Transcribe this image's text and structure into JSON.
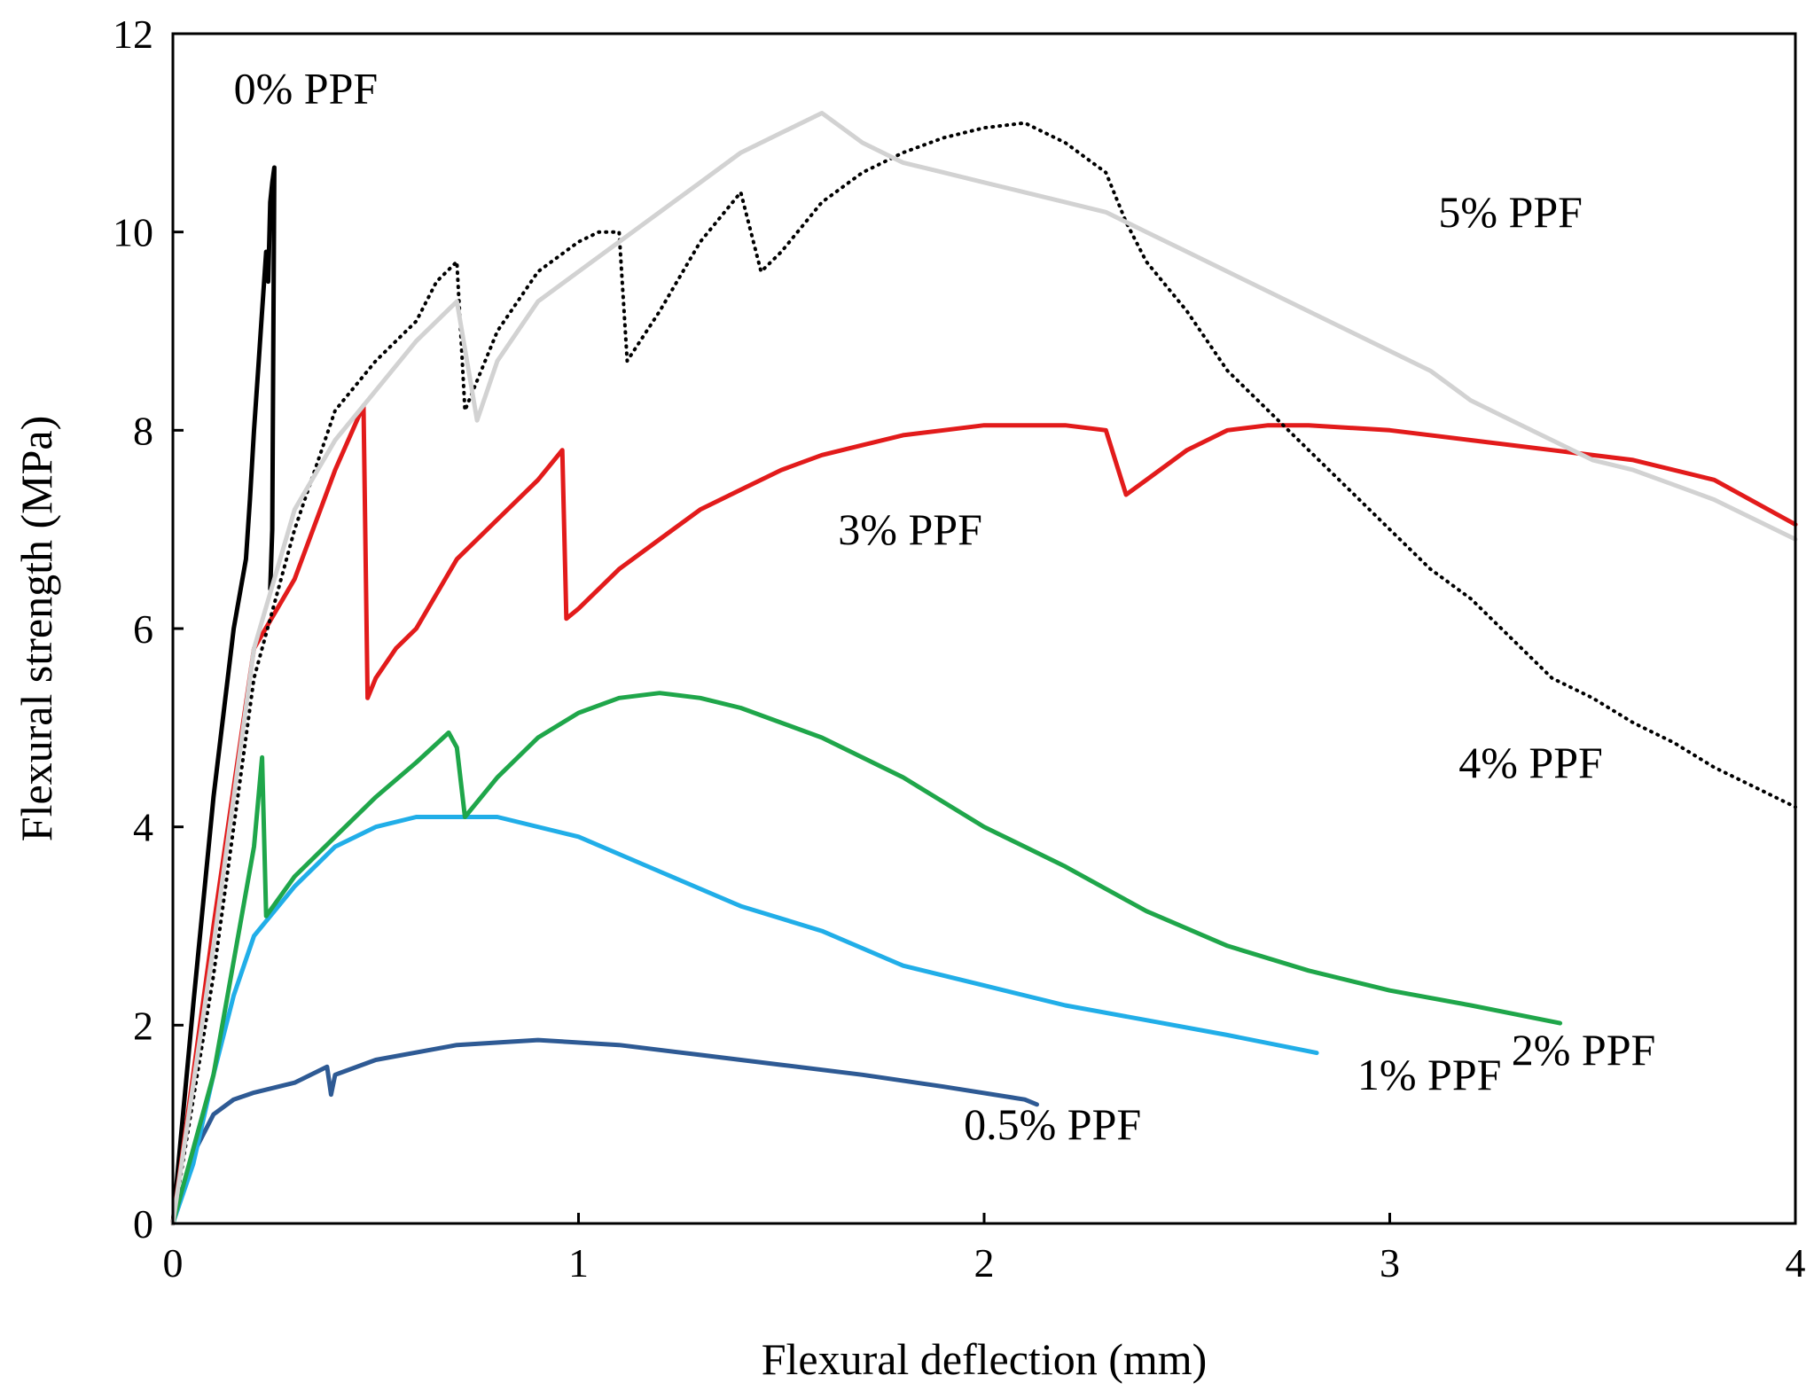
{
  "chart_data": {
    "type": "line",
    "title": "",
    "xlabel": "Flexural deflection (mm)",
    "ylabel": "Flexural strength (MPa)",
    "xlim": [
      0,
      4
    ],
    "ylim": [
      0,
      12
    ],
    "xticks": [
      0,
      1,
      2,
      3,
      4
    ],
    "yticks": [
      0,
      2,
      4,
      6,
      8,
      10,
      12
    ],
    "xtick_labels": [
      "0",
      "1",
      "2",
      "3",
      "4"
    ],
    "ytick_labels": [
      "0",
      "2",
      "4",
      "6",
      "8",
      "10",
      "12"
    ],
    "grid": false,
    "legend": "inline labels",
    "series": [
      {
        "name": "0% PPF",
        "label": "0% PPF",
        "color": "#000000",
        "style": "solid",
        "label_at": [
          0.15,
          11.3
        ],
        "x": [
          0,
          0.05,
          0.1,
          0.15,
          0.18,
          0.19,
          0.2,
          0.21,
          0.22,
          0.23,
          0.235,
          0.24,
          0.245,
          0.25,
          0.245,
          0.24
        ],
        "y": [
          0,
          2.2,
          4.3,
          6.0,
          6.7,
          7.3,
          8.0,
          8.6,
          9.2,
          9.8,
          9.5,
          10.3,
          10.5,
          10.65,
          7.0,
          6.4
        ]
      },
      {
        "name": "0.5% PPF",
        "label": "0.5% PPF",
        "color": "#2e5a94",
        "style": "solid",
        "label_at": [
          1.95,
          0.85
        ],
        "x": [
          0,
          0.05,
          0.1,
          0.15,
          0.2,
          0.3,
          0.38,
          0.39,
          0.4,
          0.5,
          0.7,
          0.9,
          1.1,
          1.3,
          1.5,
          1.7,
          1.9,
          2.1,
          2.13
        ],
        "y": [
          0,
          0.7,
          1.1,
          1.25,
          1.32,
          1.42,
          1.58,
          1.3,
          1.5,
          1.65,
          1.8,
          1.85,
          1.8,
          1.7,
          1.6,
          1.5,
          1.38,
          1.25,
          1.2
        ]
      },
      {
        "name": "1% PPF",
        "label": "1% PPF",
        "color": "#21aee8",
        "style": "solid",
        "label_at": [
          2.92,
          1.35
        ],
        "x": [
          0,
          0.05,
          0.1,
          0.15,
          0.2,
          0.3,
          0.4,
          0.5,
          0.6,
          0.8,
          1.0,
          1.2,
          1.4,
          1.6,
          1.8,
          2.0,
          2.2,
          2.4,
          2.6,
          2.82
        ],
        "y": [
          0,
          0.6,
          1.5,
          2.3,
          2.9,
          3.4,
          3.8,
          4.0,
          4.1,
          4.1,
          3.9,
          3.55,
          3.2,
          2.95,
          2.6,
          2.4,
          2.2,
          2.05,
          1.9,
          1.72
        ]
      },
      {
        "name": "2% PPF",
        "label": "2% PPF",
        "color": "#1fa64a",
        "style": "solid",
        "label_at": [
          3.3,
          1.6
        ],
        "x": [
          0,
          0.1,
          0.2,
          0.22,
          0.23,
          0.3,
          0.4,
          0.5,
          0.6,
          0.68,
          0.7,
          0.72,
          0.8,
          0.9,
          1.0,
          1.1,
          1.2,
          1.3,
          1.4,
          1.6,
          1.8,
          2.0,
          2.2,
          2.4,
          2.6,
          2.8,
          3.0,
          3.2,
          3.42
        ],
        "y": [
          0,
          1.5,
          3.8,
          4.7,
          3.1,
          3.5,
          3.9,
          4.3,
          4.65,
          4.95,
          4.8,
          4.1,
          4.5,
          4.9,
          5.15,
          5.3,
          5.35,
          5.3,
          5.2,
          4.9,
          4.5,
          4.0,
          3.6,
          3.15,
          2.8,
          2.55,
          2.35,
          2.2,
          2.02
        ]
      },
      {
        "name": "3% PPF",
        "label": "3% PPF",
        "color": "#e21b1b",
        "style": "solid",
        "label_at": [
          1.64,
          6.85
        ],
        "x": [
          0,
          0.1,
          0.2,
          0.3,
          0.4,
          0.47,
          0.48,
          0.5,
          0.55,
          0.6,
          0.7,
          0.8,
          0.9,
          0.96,
          0.97,
          1.0,
          1.1,
          1.2,
          1.3,
          1.4,
          1.5,
          1.6,
          1.7,
          1.8,
          1.9,
          2.0,
          2.1,
          2.2,
          2.3,
          2.35,
          2.4,
          2.5,
          2.6,
          2.7,
          2.8,
          3.0,
          3.2,
          3.4,
          3.6,
          3.8,
          4.0
        ],
        "y": [
          0,
          3.0,
          5.8,
          6.5,
          7.6,
          8.25,
          5.3,
          5.5,
          5.8,
          6.0,
          6.7,
          7.1,
          7.5,
          7.8,
          6.1,
          6.2,
          6.6,
          6.9,
          7.2,
          7.4,
          7.6,
          7.75,
          7.85,
          7.95,
          8.0,
          8.05,
          8.05,
          8.05,
          8.0,
          7.35,
          7.5,
          7.8,
          8.0,
          8.05,
          8.05,
          8.0,
          7.9,
          7.8,
          7.7,
          7.5,
          7.05
        ]
      },
      {
        "name": "4% PPF",
        "label": "4% PPF",
        "color": "#000000",
        "style": "dotted",
        "label_at": [
          3.17,
          4.5
        ],
        "x": [
          0,
          0.1,
          0.2,
          0.3,
          0.4,
          0.5,
          0.6,
          0.65,
          0.7,
          0.72,
          0.75,
          0.8,
          0.9,
          1.0,
          1.05,
          1.1,
          1.12,
          1.2,
          1.3,
          1.4,
          1.45,
          1.5,
          1.6,
          1.7,
          1.8,
          1.9,
          2.0,
          2.1,
          2.2,
          2.3,
          2.35,
          2.4,
          2.5,
          2.6,
          2.7,
          2.8,
          2.9,
          3.0,
          3.1,
          3.2,
          3.3,
          3.4,
          3.5,
          3.6,
          3.7,
          3.8,
          3.9,
          4.0
        ],
        "y": [
          0,
          2.5,
          5.5,
          7.0,
          8.2,
          8.7,
          9.1,
          9.5,
          9.7,
          8.2,
          8.5,
          9.0,
          9.6,
          9.9,
          10.0,
          10.0,
          8.7,
          9.2,
          9.9,
          10.4,
          9.6,
          9.8,
          10.3,
          10.6,
          10.8,
          10.95,
          11.05,
          11.1,
          10.9,
          10.6,
          10.1,
          9.7,
          9.2,
          8.6,
          8.2,
          7.8,
          7.4,
          7.0,
          6.6,
          6.3,
          5.9,
          5.5,
          5.3,
          5.05,
          4.85,
          4.6,
          4.4,
          4.2
        ]
      },
      {
        "name": "5% PPF",
        "label": "5% PPF",
        "color": "#d2d2d2",
        "style": "solid",
        "label_at": [
          3.12,
          10.05
        ],
        "x": [
          0,
          0.1,
          0.2,
          0.3,
          0.4,
          0.5,
          0.6,
          0.7,
          0.75,
          0.8,
          0.9,
          1.0,
          1.1,
          1.2,
          1.3,
          1.4,
          1.5,
          1.6,
          1.7,
          1.8,
          1.9,
          2.0,
          2.1,
          2.2,
          2.3,
          2.4,
          2.5,
          2.6,
          2.7,
          2.8,
          2.9,
          3.0,
          3.1,
          3.2,
          3.3,
          3.4,
          3.5,
          3.6,
          3.7,
          3.8,
          3.9,
          4.0
        ],
        "y": [
          0,
          2.8,
          5.8,
          7.2,
          7.9,
          8.4,
          8.9,
          9.3,
          8.1,
          8.7,
          9.3,
          9.6,
          9.9,
          10.2,
          10.5,
          10.8,
          11.0,
          11.2,
          10.9,
          10.7,
          10.6,
          10.5,
          10.4,
          10.3,
          10.2,
          10.0,
          9.8,
          9.6,
          9.4,
          9.2,
          9.0,
          8.8,
          8.6,
          8.3,
          8.1,
          7.9,
          7.7,
          7.6,
          7.45,
          7.3,
          7.1,
          6.9
        ]
      }
    ]
  }
}
